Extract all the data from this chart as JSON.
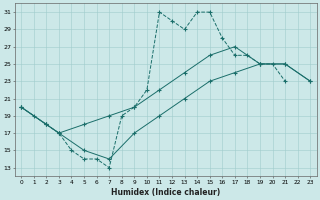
{
  "xlabel": "Humidex (Indice chaleur)",
  "bg_color": "#cce8e8",
  "line_color": "#1a6e6a",
  "xlim": [
    -0.5,
    23.5
  ],
  "ylim": [
    12,
    32
  ],
  "xticks": [
    0,
    1,
    2,
    3,
    4,
    5,
    6,
    7,
    8,
    9,
    10,
    11,
    12,
    13,
    14,
    15,
    16,
    17,
    18,
    19,
    20,
    21,
    22,
    23
  ],
  "yticks": [
    13,
    15,
    17,
    19,
    21,
    23,
    25,
    27,
    29,
    31
  ],
  "series1_x": [
    0,
    1,
    2,
    3,
    4,
    5,
    6,
    7,
    8,
    9,
    10,
    11,
    12,
    13,
    14,
    15,
    16,
    17,
    18,
    19,
    20,
    21
  ],
  "series1_y": [
    20,
    19,
    18,
    17,
    15,
    14,
    14,
    13,
    19,
    20,
    22,
    31,
    30,
    29,
    31,
    31,
    28,
    26,
    26,
    25,
    25,
    23
  ],
  "series2_x": [
    0,
    2,
    3,
    5,
    7,
    9,
    11,
    13,
    15,
    17,
    19,
    21,
    23
  ],
  "series2_y": [
    20,
    18,
    17,
    18,
    19,
    20,
    22,
    24,
    26,
    27,
    25,
    25,
    23
  ],
  "series3_x": [
    0,
    2,
    3,
    5,
    7,
    9,
    11,
    13,
    15,
    17,
    19,
    21,
    23
  ],
  "series3_y": [
    20,
    18,
    17,
    15,
    14,
    17,
    19,
    21,
    23,
    24,
    25,
    25,
    23
  ]
}
